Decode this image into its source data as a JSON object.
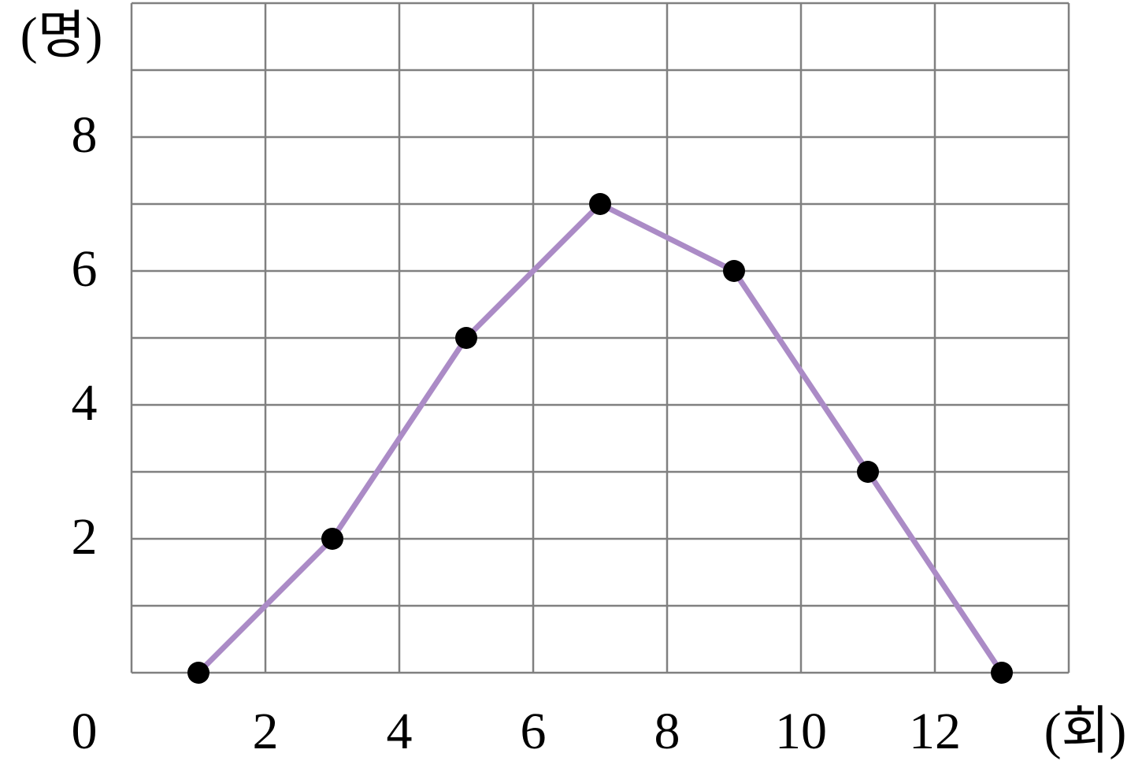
{
  "chart_data": {
    "type": "line",
    "x_label": "(회)",
    "y_label": "(명)",
    "x": [
      1,
      3,
      5,
      7,
      9,
      11,
      13
    ],
    "series": [
      {
        "color": "#ab8bc6",
        "values": [
          0,
          2,
          5,
          7,
          6,
          3,
          0
        ]
      }
    ],
    "xlim": [
      0,
      14
    ],
    "ylim": [
      0,
      10
    ],
    "xticks": [
      0,
      2,
      4,
      6,
      8,
      10,
      12
    ],
    "yticks": [
      2,
      4,
      6,
      8
    ],
    "grid": true
  }
}
